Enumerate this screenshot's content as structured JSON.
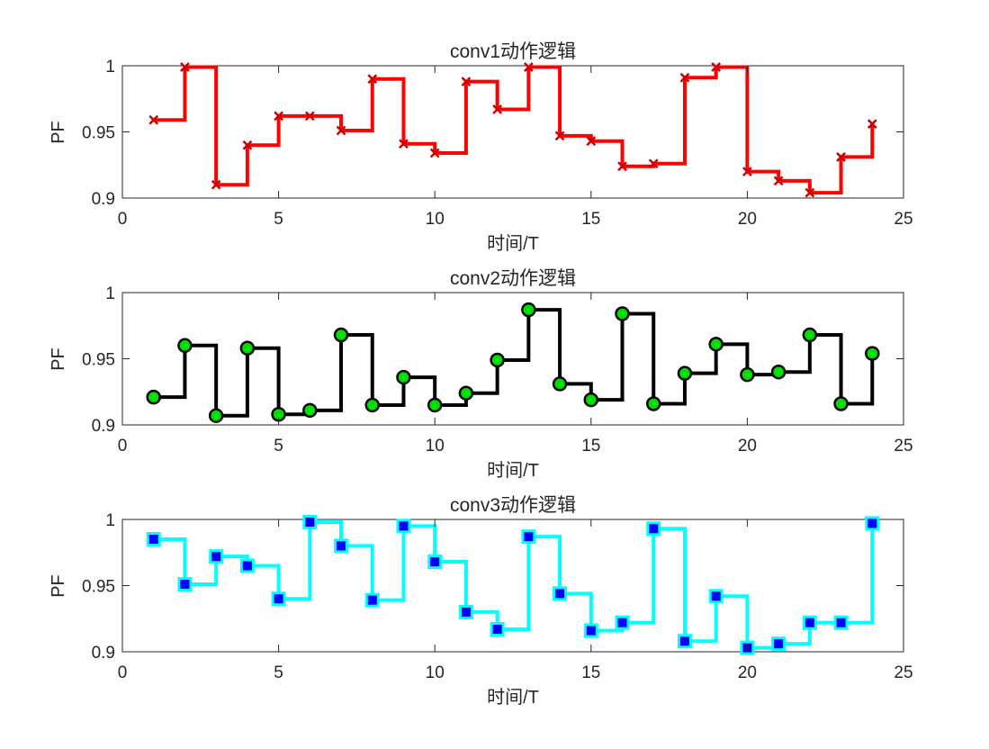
{
  "chart_data": [
    {
      "type": "line",
      "title": "conv1动作逻辑",
      "xlabel": "时间/T",
      "ylabel": "PF",
      "xlim": [
        0,
        25
      ],
      "ylim": [
        0.9,
        1.0
      ],
      "xticks": [
        0,
        5,
        10,
        15,
        20,
        25
      ],
      "yticks": [
        0.9,
        0.95,
        1.0
      ],
      "yticklabels": [
        "0.9",
        "0.95",
        "1"
      ],
      "step": "post",
      "series": [
        {
          "line_color": "#ff0000",
          "marker": "x",
          "marker_edge": "#cc0000",
          "marker_face": "#ff0000",
          "x": [
            1,
            2,
            3,
            4,
            5,
            6,
            7,
            8,
            9,
            10,
            11,
            12,
            13,
            14,
            15,
            16,
            17,
            18,
            19,
            20,
            21,
            22,
            23,
            24
          ],
          "values": [
            0.959,
            0.999,
            0.91,
            0.94,
            0.962,
            0.962,
            0.951,
            0.99,
            0.941,
            0.934,
            0.988,
            0.967,
            0.999,
            0.947,
            0.943,
            0.924,
            0.926,
            0.991,
            0.999,
            0.92,
            0.913,
            0.904,
            0.931,
            0.956
          ]
        }
      ]
    },
    {
      "type": "line",
      "title": "conv2动作逻辑",
      "xlabel": "时间/T",
      "ylabel": "PF",
      "xlim": [
        0,
        25
      ],
      "ylim": [
        0.9,
        1.0
      ],
      "xticks": [
        0,
        5,
        10,
        15,
        20,
        25
      ],
      "yticks": [
        0.9,
        0.95,
        1.0
      ],
      "yticklabels": [
        "0.9",
        "0.95",
        "1"
      ],
      "step": "post",
      "series": [
        {
          "line_color": "#000000",
          "marker": "circle",
          "marker_edge": "#000000",
          "marker_face": "#00e000",
          "x": [
            1,
            2,
            3,
            4,
            5,
            6,
            7,
            8,
            9,
            10,
            11,
            12,
            13,
            14,
            15,
            16,
            17,
            18,
            19,
            20,
            21,
            22,
            23,
            24
          ],
          "values": [
            0.921,
            0.96,
            0.907,
            0.958,
            0.908,
            0.911,
            0.968,
            0.915,
            0.936,
            0.915,
            0.924,
            0.949,
            0.987,
            0.931,
            0.919,
            0.984,
            0.916,
            0.939,
            0.961,
            0.938,
            0.94,
            0.968,
            0.916,
            0.954
          ]
        }
      ]
    },
    {
      "type": "line",
      "title": "conv3动作逻辑",
      "xlabel": "时间/T",
      "ylabel": "PF",
      "xlim": [
        0,
        25
      ],
      "ylim": [
        0.9,
        1.0
      ],
      "xticks": [
        0,
        5,
        10,
        15,
        20,
        25
      ],
      "yticks": [
        0.9,
        0.95,
        1.0
      ],
      "yticklabels": [
        "0.9",
        "0.95",
        "1"
      ],
      "step": "post",
      "series": [
        {
          "line_color": "#00ffff",
          "marker": "square",
          "marker_edge": "#00ffff",
          "marker_face": "#0000ff",
          "x": [
            1,
            2,
            3,
            4,
            5,
            6,
            7,
            8,
            9,
            10,
            11,
            12,
            13,
            14,
            15,
            16,
            17,
            18,
            19,
            20,
            21,
            22,
            23,
            24
          ],
          "values": [
            0.985,
            0.951,
            0.972,
            0.965,
            0.94,
            0.998,
            0.98,
            0.939,
            0.995,
            0.968,
            0.93,
            0.917,
            0.987,
            0.944,
            0.916,
            0.922,
            0.993,
            0.908,
            0.942,
            0.903,
            0.906,
            0.922,
            0.922,
            0.997
          ]
        }
      ]
    }
  ]
}
